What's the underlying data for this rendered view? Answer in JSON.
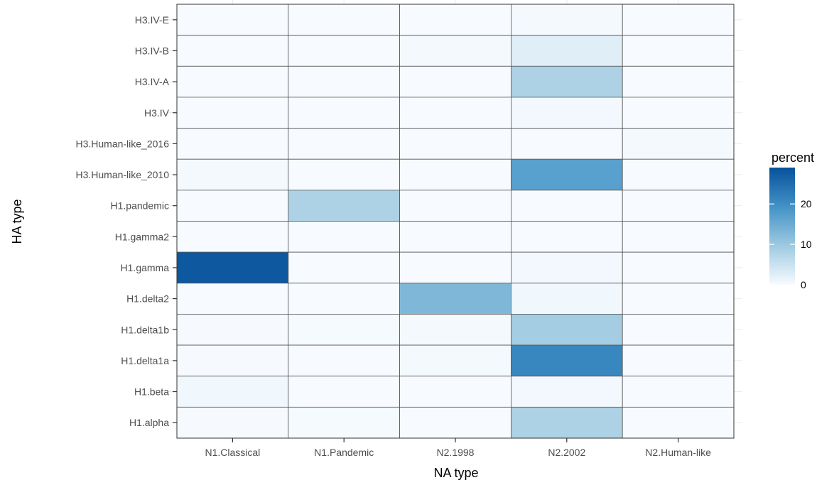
{
  "chart_data": {
    "type": "heatmap",
    "xlabel": "NA type",
    "ylabel": "HA type",
    "x_categories": [
      "N1.Classical",
      "N1.Pandemic",
      "N2.1998",
      "N2.2002",
      "N2.Human-like"
    ],
    "y_categories": [
      "H3.IV-E",
      "H3.IV-B",
      "H3.IV-A",
      "H3.IV",
      "H3.Human-like_2016",
      "H3.Human-like_2010",
      "H1.pandemic",
      "H1.gamma2",
      "H1.gamma",
      "H1.delta2",
      "H1.delta1b",
      "H1.delta1a",
      "H1.beta",
      "H1.alpha"
    ],
    "values": [
      [
        0,
        0,
        0,
        0.3,
        0
      ],
      [
        0,
        0,
        0.3,
        2.5,
        0
      ],
      [
        0,
        0,
        0,
        8,
        0
      ],
      [
        0,
        0,
        0,
        0.5,
        0
      ],
      [
        0,
        0,
        0,
        0,
        0.3
      ],
      [
        0.3,
        0,
        0,
        17,
        0
      ],
      [
        0,
        8,
        0,
        0,
        0
      ],
      [
        0,
        0,
        0,
        0,
        0
      ],
      [
        28,
        0,
        0,
        0.5,
        0
      ],
      [
        0,
        0,
        13,
        0.8,
        0
      ],
      [
        0.1,
        0.2,
        0.3,
        9,
        0
      ],
      [
        0.1,
        0,
        0.3,
        21,
        0
      ],
      [
        0.8,
        0,
        0,
        0.5,
        0
      ],
      [
        0.1,
        0.2,
        0,
        8,
        0
      ]
    ],
    "legend": {
      "title": "percent",
      "ticks": [
        0,
        10,
        20
      ],
      "range": [
        0,
        29
      ],
      "placement": "right",
      "colors": [
        "#f7fbff",
        "#9ecae1",
        "#4292c6",
        "#08519c"
      ]
    },
    "grid": true
  }
}
